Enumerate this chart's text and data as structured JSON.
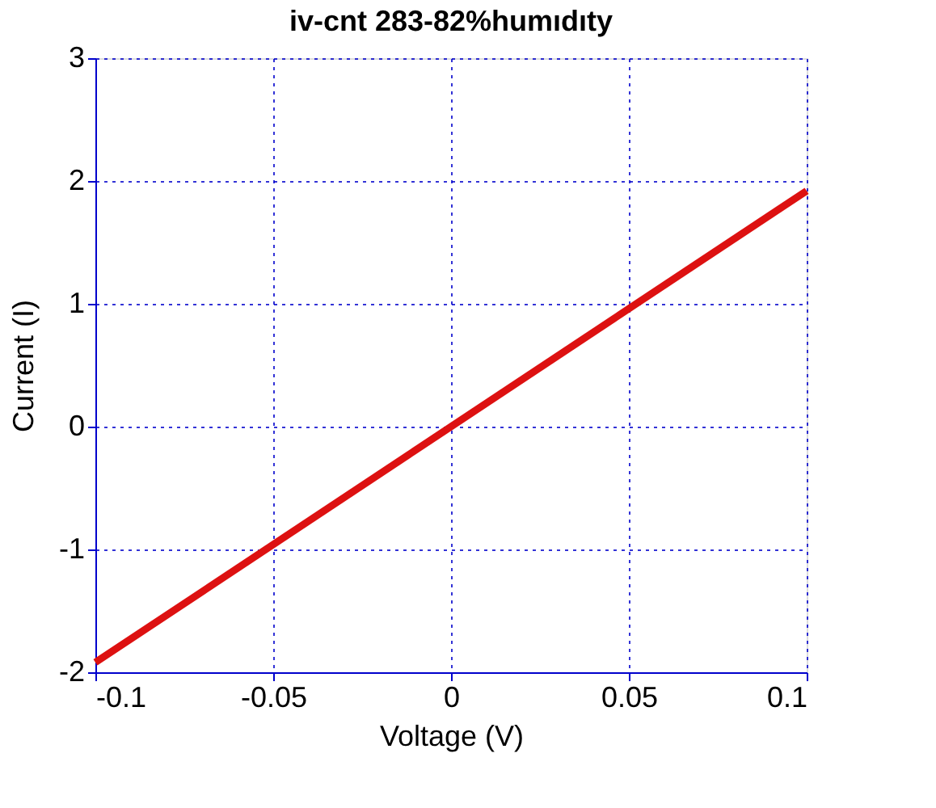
{
  "chart_data": {
    "type": "line",
    "title": "iv-cnt 283-82%humıdıty",
    "xlabel": "Voltage (V)",
    "ylabel": "Current (I)",
    "x": [
      -0.1,
      0,
      0.1
    ],
    "series": [
      {
        "color": "#dd1111",
        "values": [
          -1.92,
          0,
          1.92
        ]
      }
    ],
    "xlim": [
      -0.1,
      0.1
    ],
    "xticks": [
      -0.1,
      -0.05,
      0,
      0.05,
      0.1
    ],
    "ylim": [
      -2,
      3
    ],
    "yticks": [
      -2,
      -1,
      0,
      1,
      2,
      3
    ],
    "grid": true,
    "line_style": "solid",
    "marker": "none"
  }
}
